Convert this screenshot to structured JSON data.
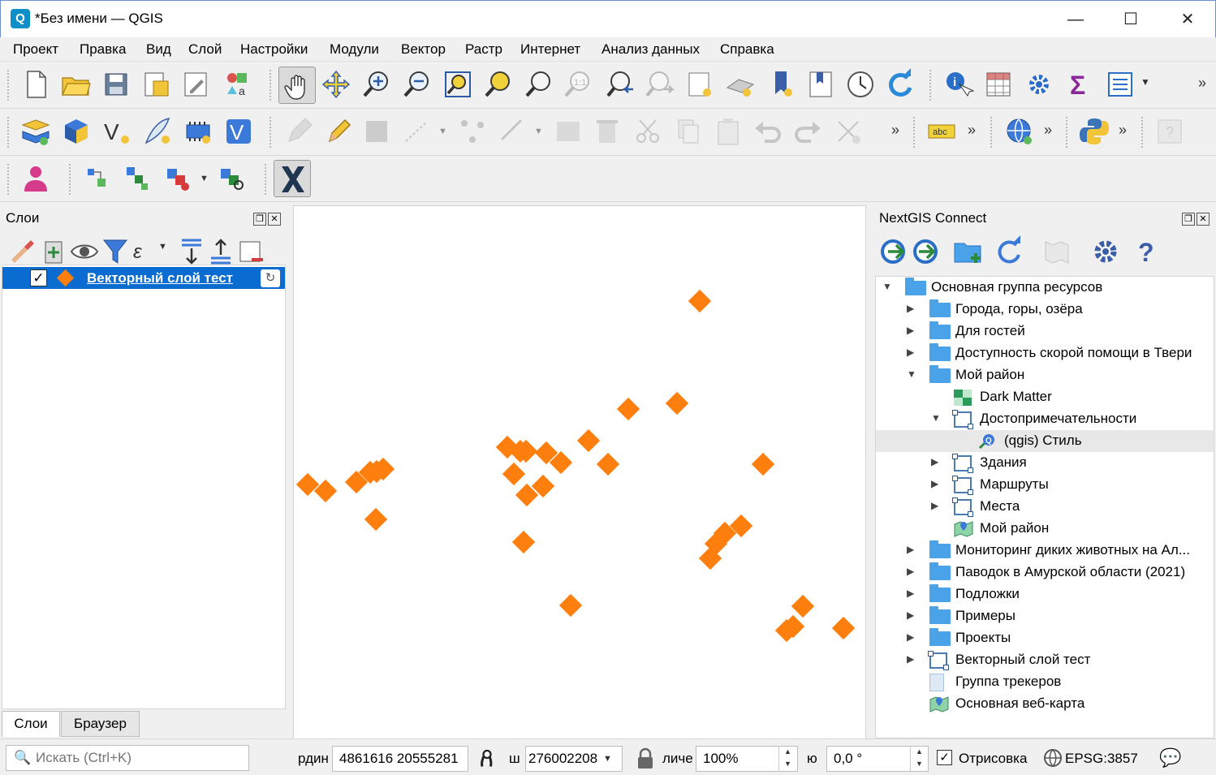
{
  "window": {
    "title": "*Без имени — QGIS",
    "app_icon": "Q",
    "minimize": "—",
    "maximize": "☐",
    "close": "✕"
  },
  "menu": [
    "Проект",
    "Правка",
    "Вид",
    "Слой",
    "Настройки",
    "Модули",
    "Вектор",
    "Растр",
    "Интернет",
    "Анализ данных",
    "Справка"
  ],
  "toolbar": {
    "more": "»"
  },
  "layers_panel": {
    "title": "Слои",
    "layer": {
      "name": "Векторный слой тест",
      "checked": "✓",
      "sync_icon": "↻",
      "symbol_color": "#ff7f0e"
    },
    "tabs": [
      "Слои",
      "Браузер"
    ]
  },
  "ngw_panel": {
    "title": "NextGIS Connect",
    "tree": [
      {
        "label": "Основная группа ресурсов",
        "type": "folder",
        "level": 0,
        "arrow": "▼"
      },
      {
        "label": "Города, горы, озёра",
        "type": "folder",
        "level": 1,
        "arrow": "▶"
      },
      {
        "label": "Для гостей",
        "type": "folder",
        "level": 1,
        "arrow": "▶"
      },
      {
        "label": "Доступность скорой помощи в Твери",
        "type": "folder",
        "level": 1,
        "arrow": "▶"
      },
      {
        "label": "Мой район",
        "type": "folder",
        "level": 1,
        "arrow": "▼"
      },
      {
        "label": "Dark Matter",
        "type": "basemap",
        "level": 2,
        "arrow": ""
      },
      {
        "label": "Достопримечательности",
        "type": "vector",
        "level": 2,
        "arrow": "▼"
      },
      {
        "label": "(qgis) Стиль",
        "type": "style",
        "level": 3,
        "arrow": "",
        "selected": true
      },
      {
        "label": "Здания",
        "type": "vector",
        "level": 2,
        "arrow": "▶"
      },
      {
        "label": "Маршруты",
        "type": "vector",
        "level": 2,
        "arrow": "▶"
      },
      {
        "label": "Места",
        "type": "vector",
        "level": 2,
        "arrow": "▶"
      },
      {
        "label": "Мой район",
        "type": "webmap",
        "level": 2,
        "arrow": ""
      },
      {
        "label": "Мониторинг диких животных на Ал...",
        "type": "folder",
        "level": 1,
        "arrow": "▶"
      },
      {
        "label": "Паводок в Амурской области (2021)",
        "type": "folder",
        "level": 1,
        "arrow": "▶"
      },
      {
        "label": "Подложки",
        "type": "folder",
        "level": 1,
        "arrow": "▶"
      },
      {
        "label": "Примеры",
        "type": "folder",
        "level": 1,
        "arrow": "▶"
      },
      {
        "label": "Проекты",
        "type": "folder",
        "level": 1,
        "arrow": "▶"
      },
      {
        "label": "Векторный слой тест",
        "type": "vector",
        "level": 1,
        "arrow": "▶"
      },
      {
        "label": "Группа трекеров",
        "type": "doc",
        "level": 1,
        "arrow": ""
      },
      {
        "label": "Основная веб-карта",
        "type": "webmap",
        "level": 1,
        "arrow": ""
      }
    ]
  },
  "map": {
    "marker_color": "#ff7f0e",
    "point_count": 30
  },
  "statusbar": {
    "search_placeholder": "Искать (Ctrl+K)",
    "coord_label": "рдин",
    "coord_value": "4861616  20555281",
    "scale_label": "ш",
    "scale_value": "276002208",
    "magnifier_label": "личе",
    "magnifier_value": "100%",
    "rotation_label": "ю",
    "rotation_value": "0,0 °",
    "render_label": "Отрисовка",
    "render_checked": "✓",
    "crs": "EPSG:3857",
    "messages_icon": "💬"
  }
}
